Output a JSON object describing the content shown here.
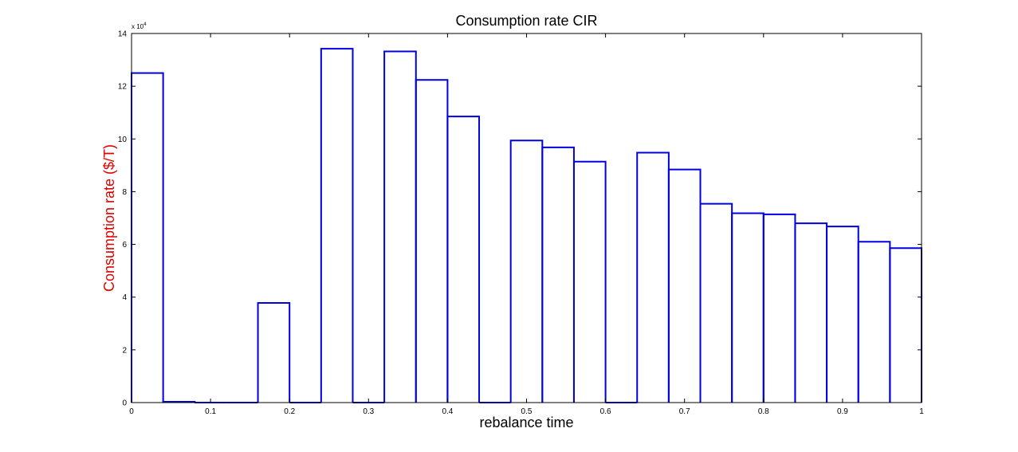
{
  "chart_data": {
    "type": "line",
    "style": "step",
    "title": "Consumption rate CIR",
    "xlabel": "rebalance time",
    "ylabel": "Consumption rate ($/T)",
    "ylabel_color": "#e00000",
    "line_color": "#0000e0",
    "xlim": [
      0,
      1
    ],
    "ylim": [
      0,
      14
    ],
    "y_multiplier_text": "x 10",
    "y_multiplier_exp": "4",
    "x_ticks": [
      0,
      0.1,
      0.2,
      0.3,
      0.4,
      0.5,
      0.6,
      0.7,
      0.8,
      0.9,
      1
    ],
    "x_tick_labels": [
      "0",
      "0.1",
      "0.2",
      "0.3",
      "0.4",
      "0.5",
      "0.6",
      "0.7",
      "0.8",
      "0.9",
      "1"
    ],
    "y_ticks": [
      0,
      2,
      4,
      6,
      8,
      10,
      12,
      14
    ],
    "y_tick_labels": [
      "0",
      "2",
      "4",
      "6",
      "8",
      "10",
      "12",
      "14"
    ],
    "grid": false,
    "bins": [
      {
        "start": 0.0,
        "end": 0.04,
        "value": 12.5
      },
      {
        "start": 0.04,
        "end": 0.08,
        "value": 0.03
      },
      {
        "start": 0.08,
        "end": 0.12,
        "value": 0.0
      },
      {
        "start": 0.12,
        "end": 0.16,
        "value": 0.0
      },
      {
        "start": 0.16,
        "end": 0.2,
        "value": 3.78
      },
      {
        "start": 0.2,
        "end": 0.24,
        "value": 0.0
      },
      {
        "start": 0.24,
        "end": 0.28,
        "value": 13.42
      },
      {
        "start": 0.28,
        "end": 0.32,
        "value": 0.0
      },
      {
        "start": 0.32,
        "end": 0.36,
        "value": 13.32
      },
      {
        "start": 0.36,
        "end": 0.4,
        "value": 12.24
      },
      {
        "start": 0.4,
        "end": 0.44,
        "value": 10.85
      },
      {
        "start": 0.44,
        "end": 0.48,
        "value": 0.0
      },
      {
        "start": 0.48,
        "end": 0.52,
        "value": 9.94
      },
      {
        "start": 0.52,
        "end": 0.56,
        "value": 9.68
      },
      {
        "start": 0.56,
        "end": 0.6,
        "value": 9.14
      },
      {
        "start": 0.6,
        "end": 0.64,
        "value": 0.0
      },
      {
        "start": 0.64,
        "end": 0.68,
        "value": 9.48
      },
      {
        "start": 0.68,
        "end": 0.72,
        "value": 8.84
      },
      {
        "start": 0.72,
        "end": 0.76,
        "value": 7.54
      },
      {
        "start": 0.76,
        "end": 0.8,
        "value": 7.18
      },
      {
        "start": 0.8,
        "end": 0.84,
        "value": 7.14
      },
      {
        "start": 0.84,
        "end": 0.88,
        "value": 6.8
      },
      {
        "start": 0.88,
        "end": 0.92,
        "value": 6.68
      },
      {
        "start": 0.92,
        "end": 0.96,
        "value": 6.1
      },
      {
        "start": 0.96,
        "end": 1.0,
        "value": 5.86
      }
    ]
  }
}
